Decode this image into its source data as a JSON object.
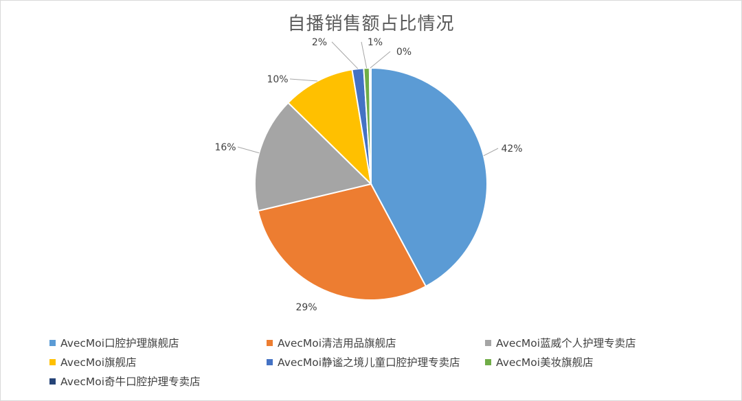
{
  "chart_data": {
    "type": "pie",
    "title": "自播销售额占比情况",
    "slices": [
      {
        "label": "AvecMoi口腔护理旗舰店",
        "value": 42,
        "value_label": "42%",
        "color": "#5B9BD5"
      },
      {
        "label": "AvecMoi清洁用品旗舰店",
        "value": 29,
        "value_label": "29%",
        "color": "#ED7D31"
      },
      {
        "label": "AvecMoi蓝威个人护理专卖店",
        "value": 16,
        "value_label": "16%",
        "color": "#A5A5A5"
      },
      {
        "label": "AvecMoi旗舰店",
        "value": 10,
        "value_label": "10%",
        "color": "#FFC000"
      },
      {
        "label": "AvecMoi静谧之境儿童口腔护理专卖店",
        "value": 1.6,
        "value_label": "2%",
        "color": "#4472C4"
      },
      {
        "label": "AvecMoi美妆旗舰店",
        "value": 0.8,
        "value_label": "1%",
        "color": "#70AD47"
      },
      {
        "label": "AvecMoi奇牛口腔护理专卖店",
        "value": 0.2,
        "value_label": "0%",
        "color": "#264478"
      }
    ],
    "legend_position": "bottom"
  }
}
